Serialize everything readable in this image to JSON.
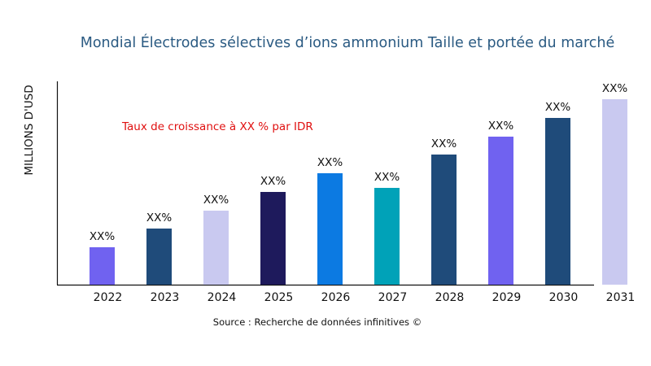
{
  "chart_data": {
    "type": "bar",
    "title": "Mondial Électrodes sélectives d’ions ammonium Taille et portée du marché",
    "ylabel": "MILLIONS D'USD",
    "xlabel": "",
    "annotation": "Taux de croissance à XX % par IDR",
    "source": "Source : Recherche de données infinitives ©",
    "categories": [
      "2022",
      "2023",
      "2024",
      "2025",
      "2026",
      "2027",
      "2028",
      "2029",
      "2030",
      "2031"
    ],
    "values": [
      46,
      69,
      91,
      114,
      137,
      119,
      160,
      182,
      205,
      228
    ],
    "data_labels": [
      "XX%",
      "XX%",
      "XX%",
      "XX%",
      "XX%",
      "XX%",
      "XX%",
      "XX%",
      "XX%",
      "XX%"
    ],
    "colors": [
      "#7062f0",
      "#1f4b7a",
      "#c9c9f0",
      "#1e1a5c",
      "#0c7ae2",
      "#00a2b8",
      "#1f4b7a",
      "#7062f0",
      "#1f4b7a",
      "#c9c9f0"
    ],
    "grid": false,
    "legend": "none"
  }
}
